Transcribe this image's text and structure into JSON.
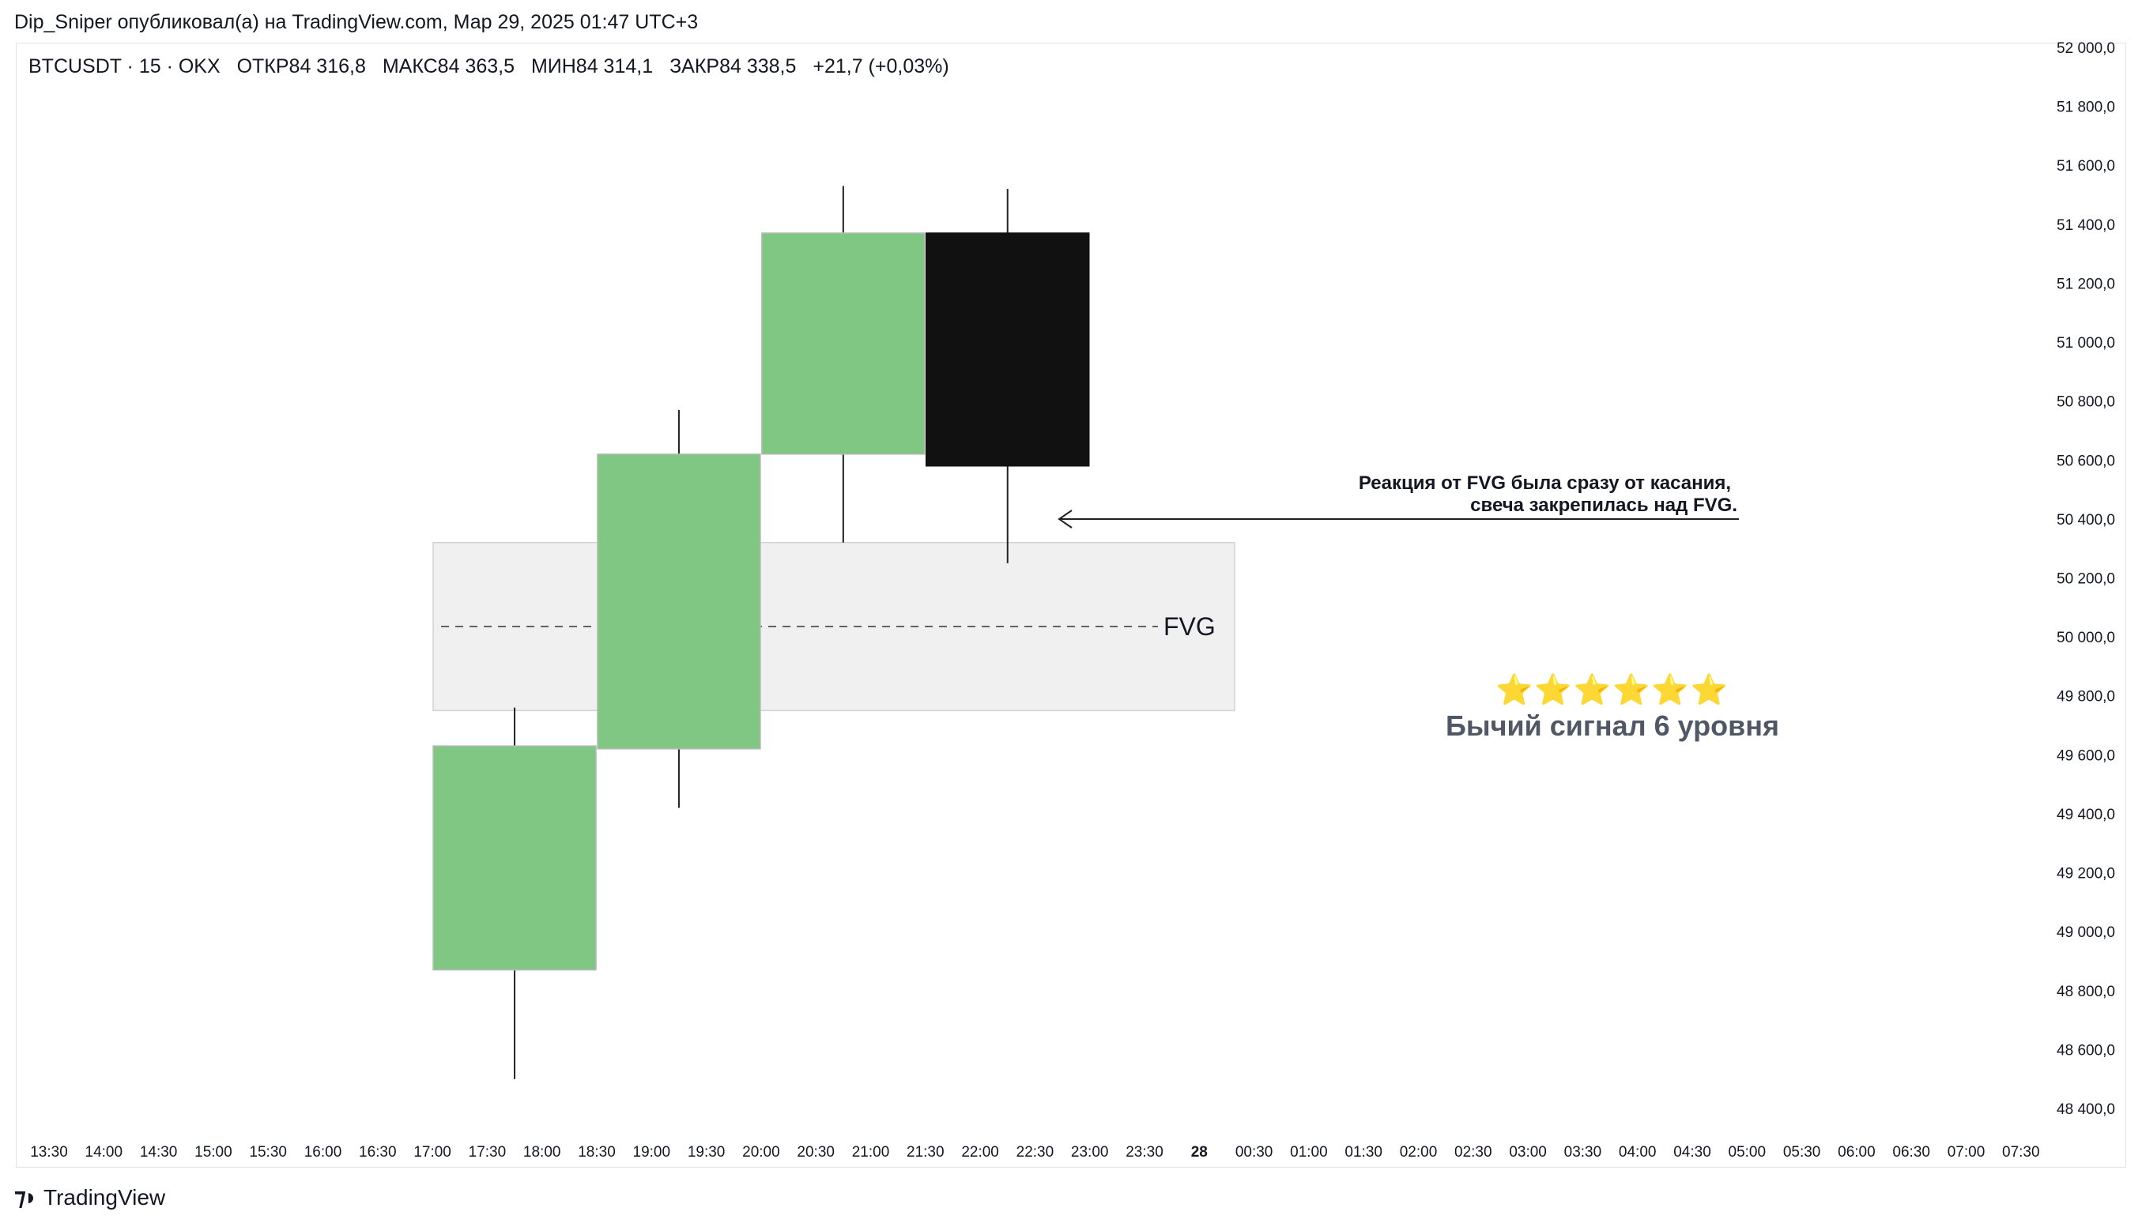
{
  "caption": "Dip_Sniper опубликовал(а) на TradingView.com, Мар 29, 2025 01:47 UTC+3",
  "legend": {
    "symbol": "BTCUSDT · 15 · OKX",
    "open": "ОТКР84 316,8",
    "high": "МАКС84 363,5",
    "low": "МИН84 314,1",
    "close": "ЗАКР84 338,5",
    "change": "+21,7 (+0,03%)"
  },
  "annotations": {
    "reaction_line1": "Реакция от FVG была сразу от касания,",
    "reaction_line2": "свеча закрепилась над FVG.",
    "fvg_label": "FVG",
    "stars": "⭐⭐⭐⭐⭐⭐",
    "signal": "Бычий сигнал 6 уровня"
  },
  "brand": {
    "name": "TradingView",
    "icon": "tradingview-logo-icon"
  },
  "chart_data": {
    "type": "candlestick",
    "ylim": [
      48300,
      52000
    ],
    "y_ticks": [
      "52 000,0",
      "51 800,0",
      "51 600,0",
      "51 400,0",
      "51 200,0",
      "51 000,0",
      "50 800,0",
      "50 600,0",
      "50 400,0",
      "50 200,0",
      "50 000,0",
      "49 800,0",
      "49 600,0",
      "49 400,0",
      "49 200,0",
      "49 000,0",
      "48 800,0",
      "48 600,0",
      "48 400,0"
    ],
    "y_tick_values": [
      52000,
      51800,
      51600,
      51400,
      51200,
      51000,
      50800,
      50600,
      50400,
      50200,
      50000,
      49800,
      49600,
      49400,
      49200,
      49000,
      48800,
      48600,
      48400
    ],
    "x_ticks": [
      "13:30",
      "14:00",
      "14:30",
      "15:00",
      "15:30",
      "16:00",
      "16:30",
      "17:00",
      "17:30",
      "18:00",
      "18:30",
      "19:00",
      "19:30",
      "20:00",
      "20:30",
      "21:00",
      "21:30",
      "22:00",
      "22:30",
      "23:00",
      "23:30",
      "28",
      "00:30",
      "01:00",
      "01:30",
      "02:00",
      "02:30",
      "03:00",
      "03:30",
      "04:00",
      "04:30",
      "05:00",
      "05:30",
      "06:00",
      "06:30",
      "07:00",
      "07:30"
    ],
    "candles": [
      {
        "x_index": 8.5,
        "open": 48870,
        "close": 49630,
        "high": 49760,
        "low": 48500,
        "color": "#81c784"
      },
      {
        "x_index": 11.5,
        "open": 49620,
        "close": 50620,
        "high": 50770,
        "low": 49420,
        "color": "#81c784"
      },
      {
        "x_index": 14.5,
        "open": 50620,
        "close": 51370,
        "high": 51530,
        "low": 50320,
        "color": "#81c784"
      },
      {
        "x_index": 17.5,
        "open": 51370,
        "close": 50580,
        "high": 51520,
        "low": 50250,
        "color": "#111111"
      }
    ],
    "fvg_zone": {
      "top": 50320,
      "bottom": 49750,
      "mid": 50035,
      "x_start_index": 8.5,
      "x_end_index": 21.5
    }
  }
}
